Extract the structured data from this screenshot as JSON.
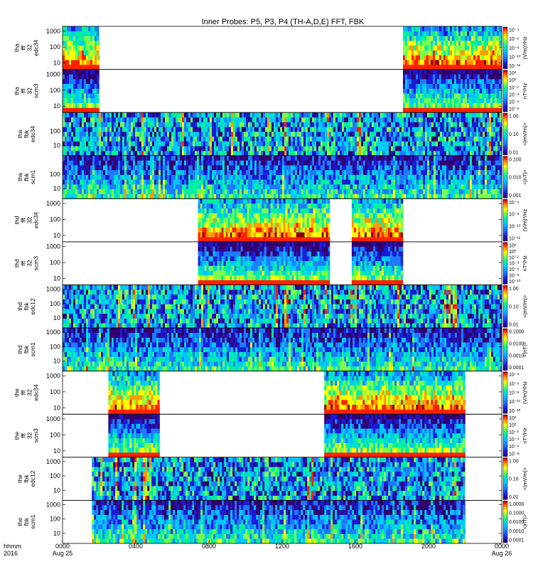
{
  "title": "Inner Probes: P5, P3, P4 (TH-A,D,E) FFT, FBK",
  "x_axis": {
    "row1_label": "hhmm",
    "row2_label": "2016",
    "ticks": [
      {
        "hour": 0,
        "label": "0000",
        "sublabel": "Aug 25"
      },
      {
        "hour": 4,
        "label": "0400",
        "sublabel": ""
      },
      {
        "hour": 8,
        "label": "0800",
        "sublabel": ""
      },
      {
        "hour": 12,
        "label": "1200",
        "sublabel": ""
      },
      {
        "hour": 16,
        "label": "1600",
        "sublabel": ""
      },
      {
        "hour": 20,
        "label": "2000",
        "sublabel": ""
      },
      {
        "hour": 24,
        "label": "0000",
        "sublabel": "Aug 26"
      }
    ],
    "range_hours": [
      0,
      24
    ]
  },
  "chart_data": {
    "type": "heatmap",
    "title": "Inner Probes: P5, P3, P4 (TH-A,D,E) FFT, FBK",
    "x_unit": "hours UT, 2016 Aug 25",
    "y_scale": "log",
    "panels": [
      {
        "id": "tha_fff_edc34",
        "label": [
          "tha",
          "fff",
          "32",
          "edc34"
        ],
        "ytick_labels": [
          "1000",
          "100",
          "10"
        ],
        "ytick_values": [
          1000,
          100,
          10
        ],
        "yrange": [
          4,
          2000
        ],
        "coverage_hours": [
          [
            0,
            2.0
          ],
          [
            18.6,
            24
          ]
        ],
        "cb_labels": [
          "10⁻⁴",
          "10⁻⁶",
          "10⁻⁸",
          "10⁻¹⁰",
          "10⁻¹²"
        ],
        "cb_unit": "(V/m)²/Hz",
        "kind": "fft_e"
      },
      {
        "id": "tha_fff_scm3",
        "label": [
          "tha",
          "fff",
          "32",
          "scm3"
        ],
        "ytick_labels": [
          "1000",
          "100",
          "10"
        ],
        "ytick_values": [
          1000,
          100,
          10
        ],
        "yrange": [
          4,
          2000
        ],
        "coverage_hours": [
          [
            0,
            2.0
          ],
          [
            18.6,
            24
          ]
        ],
        "cb_labels": [
          "10²",
          "10⁰",
          "10⁻²",
          "10⁻⁴",
          "10⁻⁶",
          "10⁻⁸"
        ],
        "cb_unit": "nT²/Hz",
        "kind": "fft_b"
      },
      {
        "id": "tha_fbk_edc34",
        "label": [
          "tha",
          "fbk",
          "edc34"
        ],
        "ytick_labels": [
          "100",
          "10"
        ],
        "ytick_values": [
          100,
          10
        ],
        "yrange": [
          2,
          2000
        ],
        "coverage_hours": [
          [
            0,
            24
          ]
        ],
        "cb_labels": [
          "1.00",
          "0.10",
          "0.01"
        ],
        "cb_unit": "<|mV/m|>",
        "kind": "fbk_e"
      },
      {
        "id": "tha_fbk_scm1",
        "label": [
          "tha",
          "fbk",
          "scm1"
        ],
        "ytick_labels": [
          "100",
          "10"
        ],
        "ytick_values": [
          100,
          10
        ],
        "yrange": [
          2,
          2000
        ],
        "coverage_hours": [
          [
            0,
            24
          ]
        ],
        "cb_labels": [
          "0.100",
          "0.010",
          "0.001"
        ],
        "cb_unit": "<|nT|>",
        "kind": "fbk_b"
      },
      {
        "id": "thd_fff_edc34",
        "label": [
          "thd",
          "fff",
          "32",
          "edc34"
        ],
        "ytick_labels": [
          "1000",
          "100",
          "10"
        ],
        "ytick_values": [
          1000,
          100,
          10
        ],
        "yrange": [
          4,
          2000
        ],
        "coverage_hours": [
          [
            7.4,
            14.6
          ],
          [
            15.8,
            18.6
          ]
        ],
        "cb_labels": [
          "10⁻⁶",
          "10⁻⁸",
          "10⁻¹⁰",
          "10⁻¹²"
        ],
        "cb_unit": "(V/m)²/Hz",
        "kind": "fft_e"
      },
      {
        "id": "thd_fff_scm3",
        "label": [
          "thd",
          "fff",
          "32",
          "scm3"
        ],
        "ytick_labels": [
          "1000",
          "100",
          "10"
        ],
        "ytick_values": [
          1000,
          100,
          10
        ],
        "yrange": [
          4,
          2000
        ],
        "coverage_hours": [
          [
            7.4,
            14.6
          ],
          [
            15.8,
            18.6
          ]
        ],
        "cb_labels": [
          "10²",
          "10⁰",
          "10⁻²",
          "10⁻⁴",
          "10⁻⁶",
          "10⁻⁸",
          "10⁻¹⁰"
        ],
        "cb_unit": "nT²/Hz",
        "kind": "fft_b"
      },
      {
        "id": "thd_fbk_edc12",
        "label": [
          "thd",
          "fbk",
          "edc12"
        ],
        "ytick_labels": [
          "1000",
          "100",
          "10"
        ],
        "ytick_values": [
          1000,
          100,
          10
        ],
        "yrange": [
          2,
          2000
        ],
        "coverage_hours": [
          [
            0,
            24
          ]
        ],
        "cb_labels": [
          "1.00",
          "0.10",
          "0.01"
        ],
        "cb_unit": "<|mV/m|>",
        "kind": "fbk_e"
      },
      {
        "id": "thd_fbk_scm1",
        "label": [
          "thd",
          "fbk",
          "scm1"
        ],
        "ytick_labels": [
          "1000",
          "100",
          "10"
        ],
        "ytick_values": [
          1000,
          100,
          10
        ],
        "yrange": [
          2,
          2000
        ],
        "coverage_hours": [
          [
            0,
            24
          ]
        ],
        "cb_labels": [
          "0.1000",
          "0.0100",
          "0.0010",
          "0.0001"
        ],
        "cb_unit": "<|nT|>",
        "kind": "fbk_b"
      },
      {
        "id": "the_fff_edc34",
        "label": [
          "the",
          "fff",
          "32",
          "edc34"
        ],
        "ytick_labels": [
          "1000",
          "100",
          "10"
        ],
        "ytick_values": [
          1000,
          100,
          10
        ],
        "yrange": [
          4,
          2000
        ],
        "coverage_hours": [
          [
            2.5,
            5.3
          ],
          [
            14.3,
            22.0
          ]
        ],
        "cb_labels": [
          "10⁻⁴",
          "10⁻⁶",
          "10⁻⁸",
          "10⁻¹⁰",
          "10⁻¹²"
        ],
        "cb_unit": "(V/m)²/Hz",
        "kind": "fft_e"
      },
      {
        "id": "the_fff_scm3",
        "label": [
          "the",
          "fff",
          "32",
          "scm3"
        ],
        "ytick_labels": [
          "1000",
          "100",
          "10"
        ],
        "ytick_values": [
          1000,
          100,
          10
        ],
        "yrange": [
          4,
          2000
        ],
        "coverage_hours": [
          [
            2.5,
            5.3
          ],
          [
            14.3,
            22.0
          ]
        ],
        "cb_labels": [
          "10²",
          "10⁰",
          "10⁻²",
          "10⁻⁴",
          "10⁻⁶",
          "10⁻⁸"
        ],
        "cb_unit": "nT²/Hz",
        "kind": "fft_b"
      },
      {
        "id": "the_fbk_edc12",
        "label": [
          "the",
          "fbk",
          "edc12"
        ],
        "ytick_labels": [
          "1000",
          "100",
          "10"
        ],
        "ytick_values": [
          1000,
          100,
          10
        ],
        "yrange": [
          2,
          2000
        ],
        "coverage_hours": [
          [
            1.6,
            22.0
          ]
        ],
        "cb_labels": [
          "1.00",
          "0.10",
          "0.01"
        ],
        "cb_unit": "<|mV/m|>",
        "kind": "fbk_e"
      },
      {
        "id": "the_fbk_scm1",
        "label": [
          "the",
          "fbk",
          "scm1"
        ],
        "ytick_labels": [
          "1000",
          "100",
          "10"
        ],
        "ytick_values": [
          1000,
          100,
          10
        ],
        "yrange": [
          2,
          2000
        ],
        "coverage_hours": [
          [
            1.6,
            22.0
          ]
        ],
        "cb_labels": [
          "1.0000",
          "0.1000",
          "0.0100",
          "0.0010",
          "0.0001"
        ],
        "cb_unit": "<|nT|>",
        "kind": "fbk_b"
      }
    ],
    "colormap": [
      "#ffffff",
      "#32006e",
      "#1b1bd6",
      "#1e7bff",
      "#00c8ff",
      "#00f0a0",
      "#7cff4a",
      "#ffff00",
      "#ff9a00",
      "#ff2000",
      "#8b0000"
    ]
  }
}
